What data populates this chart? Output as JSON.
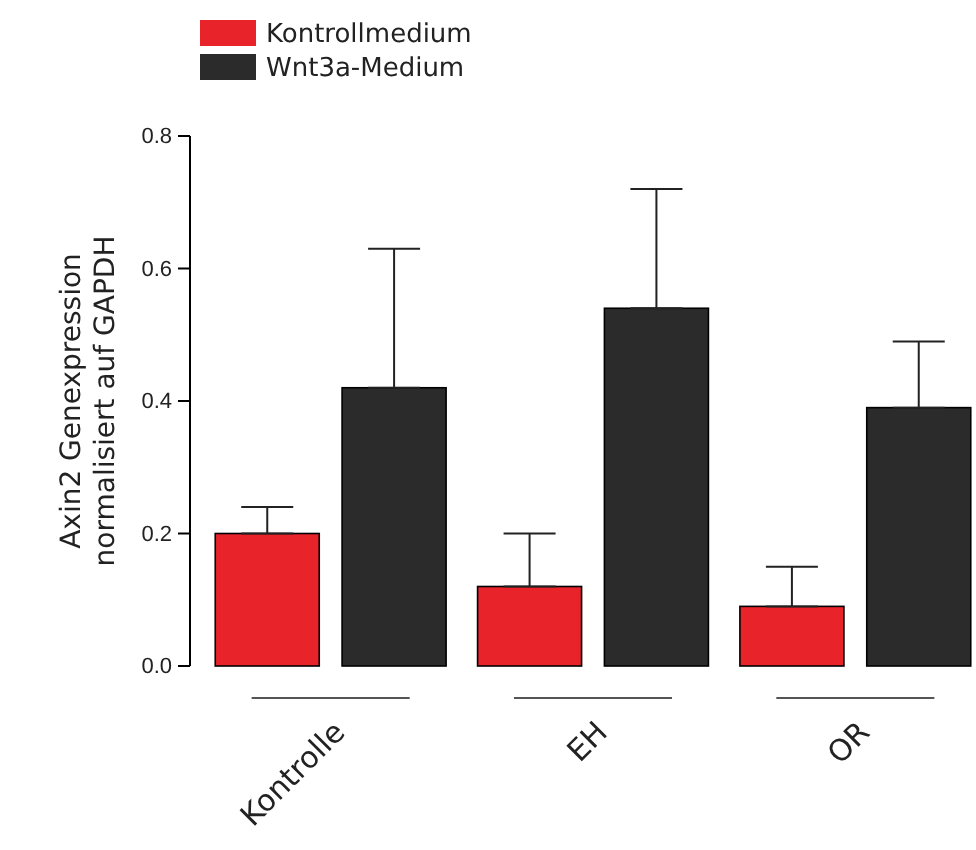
{
  "chart_data": {
    "type": "bar",
    "ylabel": "Axin2 Genexpression\nnormalisiert auf GAPDH",
    "categories": [
      "Kontrolle",
      "EH",
      "OR"
    ],
    "series": [
      {
        "name": "Kontrollmedium",
        "color": "#e8232a",
        "values": [
          0.2,
          0.12,
          0.09
        ],
        "errors": [
          [
            0.2,
            0.24
          ],
          [
            0.12,
            0.2
          ],
          [
            0.09,
            0.15
          ]
        ]
      },
      {
        "name": "Wnt3a-Medium",
        "color": "#2b2b2b",
        "values": [
          0.42,
          0.54,
          0.39
        ],
        "errors": [
          [
            0.42,
            0.63
          ],
          [
            0.54,
            0.72
          ],
          [
            0.39,
            0.49
          ]
        ]
      }
    ],
    "ylim": [
      0,
      0.8
    ],
    "yticks": [
      {
        "value": 0,
        "label": "0.0"
      },
      {
        "value": 0.2,
        "label": "0.2"
      },
      {
        "value": 0.4,
        "label": "0.4"
      },
      {
        "value": 0.6,
        "label": "0.6"
      },
      {
        "value": 0.8,
        "label": "0.8"
      }
    ],
    "grid": false,
    "legend": "top left"
  }
}
